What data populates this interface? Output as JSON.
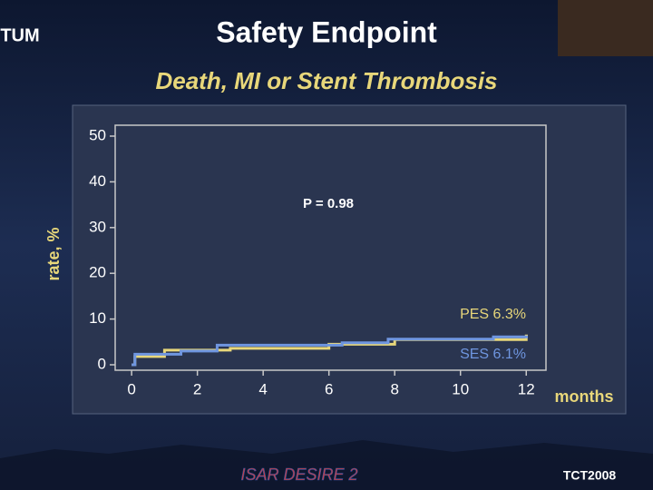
{
  "header": {
    "logo_left": "TUM",
    "logo_right": "TCT2008",
    "footer": "ISAR DESIRE 2"
  },
  "chart_data": {
    "type": "step",
    "title": "Safety Endpoint",
    "subtitle": "Death, MI or Stent Thrombosis",
    "ylabel": "rate, %",
    "xlabel": "months",
    "annotations": [
      "P = 0.98",
      "PES 6.3%",
      "SES 6.1%"
    ],
    "xlim": [
      -0.5,
      12.6
    ],
    "xticks": [
      0,
      2,
      4,
      6,
      8,
      10,
      12
    ],
    "ylim": [
      0,
      50
    ],
    "yticks": [
      0,
      10,
      20,
      30,
      40,
      50
    ],
    "series": [
      {
        "name": "PES",
        "color": "#e8d77a",
        "x": [
          0,
          0.1,
          1,
          3,
          6,
          8,
          12
        ],
        "values": [
          0,
          1.8,
          3.2,
          3.6,
          4.5,
          5.5,
          6.3
        ]
      },
      {
        "name": "SES",
        "color": "#6f96e0",
        "x": [
          0,
          0.1,
          1.5,
          2.6,
          6.4,
          7.8,
          11,
          12
        ],
        "values": [
          0,
          2.3,
          3.0,
          4.3,
          4.8,
          5.6,
          6.1,
          6.1
        ]
      }
    ]
  }
}
